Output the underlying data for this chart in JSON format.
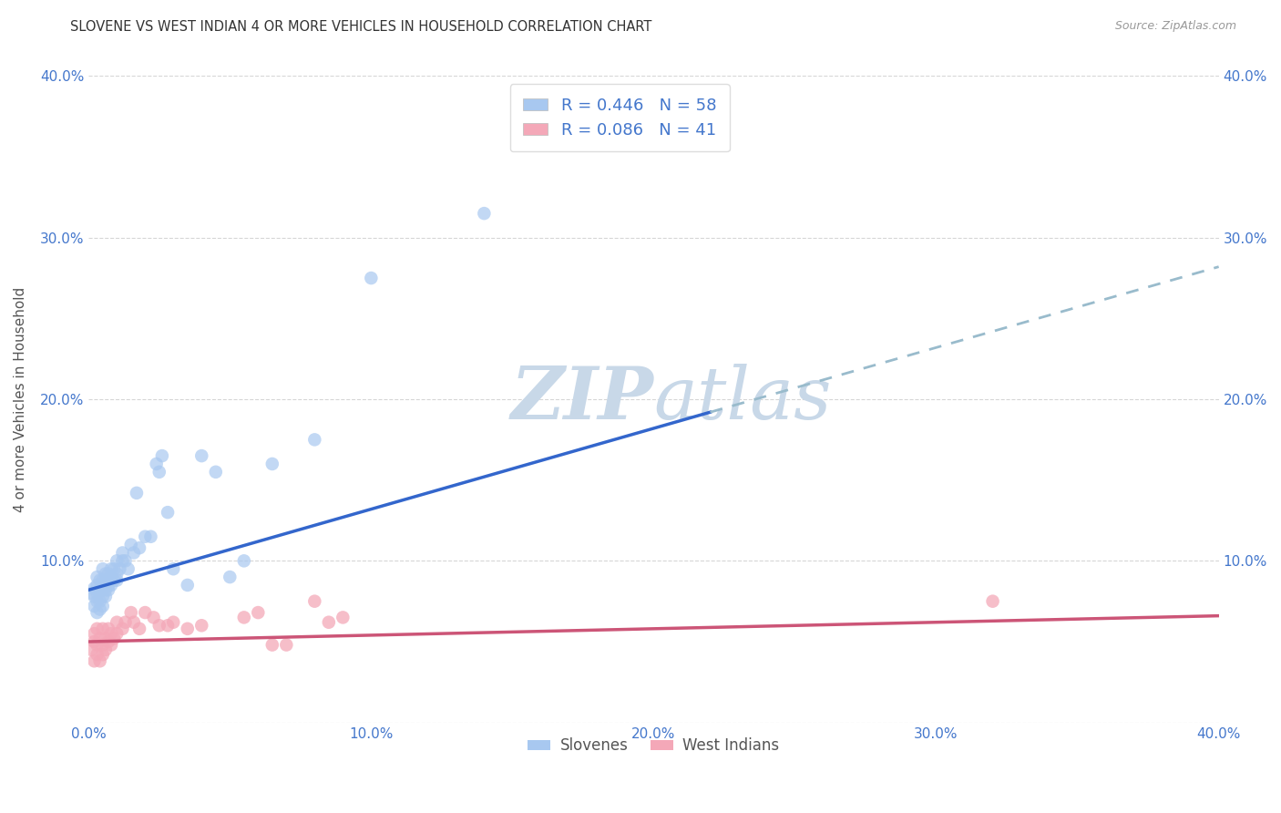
{
  "title": "SLOVENE VS WEST INDIAN 4 OR MORE VEHICLES IN HOUSEHOLD CORRELATION CHART",
  "source": "Source: ZipAtlas.com",
  "tick_color": "#4477cc",
  "ylabel": "4 or more Vehicles in Household",
  "xlim": [
    0.0,
    0.4
  ],
  "ylim": [
    0.0,
    0.4
  ],
  "xtick_labels": [
    "0.0%",
    "10.0%",
    "20.0%",
    "30.0%",
    "40.0%"
  ],
  "xtick_values": [
    0.0,
    0.1,
    0.2,
    0.3,
    0.4
  ],
  "ytick_labels": [
    "",
    "10.0%",
    "20.0%",
    "30.0%",
    "40.0%"
  ],
  "ytick_values": [
    0.0,
    0.1,
    0.2,
    0.3,
    0.4
  ],
  "legend_slovene_label": "R = 0.446   N = 58",
  "legend_westindian_label": "R = 0.086   N = 41",
  "slovene_color": "#a8c8f0",
  "westindian_color": "#f4a8b8",
  "slovene_line_color": "#3366cc",
  "westindian_line_color": "#cc5577",
  "trendline_extend_color": "#99bbcc",
  "background_color": "#ffffff",
  "grid_color": "#cccccc",
  "watermark_zip": "ZIP",
  "watermark_atlas": "atlas",
  "watermark_color": "#c8d8e8",
  "slovene_x": [
    0.001,
    0.002,
    0.002,
    0.002,
    0.003,
    0.003,
    0.003,
    0.003,
    0.003,
    0.004,
    0.004,
    0.004,
    0.004,
    0.005,
    0.005,
    0.005,
    0.005,
    0.005,
    0.006,
    0.006,
    0.006,
    0.006,
    0.007,
    0.007,
    0.007,
    0.008,
    0.008,
    0.008,
    0.009,
    0.009,
    0.01,
    0.01,
    0.01,
    0.011,
    0.012,
    0.012,
    0.013,
    0.014,
    0.015,
    0.016,
    0.017,
    0.018,
    0.02,
    0.022,
    0.024,
    0.025,
    0.026,
    0.028,
    0.03,
    0.035,
    0.04,
    0.045,
    0.05,
    0.055,
    0.065,
    0.08,
    0.1,
    0.14
  ],
  "slovene_y": [
    0.08,
    0.072,
    0.078,
    0.083,
    0.068,
    0.075,
    0.08,
    0.085,
    0.09,
    0.07,
    0.075,
    0.082,
    0.088,
    0.072,
    0.078,
    0.082,
    0.088,
    0.095,
    0.078,
    0.082,
    0.088,
    0.092,
    0.082,
    0.085,
    0.092,
    0.085,
    0.09,
    0.095,
    0.088,
    0.095,
    0.088,
    0.092,
    0.1,
    0.095,
    0.1,
    0.105,
    0.1,
    0.095,
    0.11,
    0.105,
    0.142,
    0.108,
    0.115,
    0.115,
    0.16,
    0.155,
    0.165,
    0.13,
    0.095,
    0.085,
    0.165,
    0.155,
    0.09,
    0.1,
    0.16,
    0.175,
    0.275,
    0.315
  ],
  "westindian_x": [
    0.001,
    0.002,
    0.002,
    0.002,
    0.003,
    0.003,
    0.003,
    0.004,
    0.004,
    0.005,
    0.005,
    0.005,
    0.006,
    0.006,
    0.007,
    0.007,
    0.008,
    0.008,
    0.009,
    0.01,
    0.01,
    0.012,
    0.013,
    0.015,
    0.016,
    0.018,
    0.02,
    0.023,
    0.025,
    0.028,
    0.03,
    0.035,
    0.04,
    0.055,
    0.06,
    0.065,
    0.07,
    0.08,
    0.085,
    0.09,
    0.32
  ],
  "westindian_y": [
    0.045,
    0.038,
    0.05,
    0.055,
    0.042,
    0.048,
    0.058,
    0.038,
    0.052,
    0.042,
    0.048,
    0.058,
    0.045,
    0.052,
    0.05,
    0.058,
    0.048,
    0.055,
    0.052,
    0.055,
    0.062,
    0.058,
    0.062,
    0.068,
    0.062,
    0.058,
    0.068,
    0.065,
    0.06,
    0.06,
    0.062,
    0.058,
    0.06,
    0.065,
    0.068,
    0.048,
    0.048,
    0.075,
    0.062,
    0.065,
    0.075
  ],
  "slovene_trendline_intercept": 0.082,
  "slovene_trendline_slope": 0.5,
  "westindian_trendline_intercept": 0.05,
  "westindian_trendline_slope": 0.04
}
